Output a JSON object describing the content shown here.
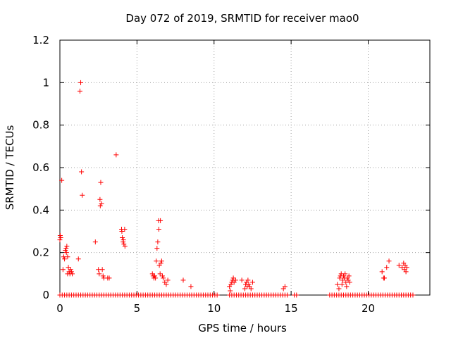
{
  "chart_data": {
    "type": "scatter",
    "title": "Day 072 of 2019, SRMTID for receiver mao0",
    "xlabel": "GPS time / hours",
    "ylabel": "SRMTID / TECUs",
    "xlim": [
      0,
      24
    ],
    "ylim": [
      0,
      1.2
    ],
    "xticks": [
      0,
      5,
      10,
      15,
      20
    ],
    "xtick_labels": [
      "0",
      "5",
      "10",
      "15",
      "20"
    ],
    "yticks": [
      0,
      0.2,
      0.4,
      0.6,
      0.8,
      1,
      1.2
    ],
    "ytick_labels": [
      "0",
      "0.2",
      "0.4",
      "0.6",
      "0.8",
      "1",
      "1.2"
    ],
    "grid": true,
    "marker": "+",
    "color": "#ff0000",
    "series": [
      {
        "name": "SRMTID",
        "points": [
          [
            0.0,
            0.26
          ],
          [
            0.02,
            0.28
          ],
          [
            0.05,
            0.27
          ],
          [
            0.12,
            0.54
          ],
          [
            0.2,
            0.12
          ],
          [
            0.25,
            0.18
          ],
          [
            0.3,
            0.17
          ],
          [
            0.35,
            0.21
          ],
          [
            0.4,
            0.22
          ],
          [
            0.42,
            0.2
          ],
          [
            0.45,
            0.23
          ],
          [
            0.5,
            0.18
          ],
          [
            0.5,
            0.1
          ],
          [
            0.55,
            0.13
          ],
          [
            0.6,
            0.11
          ],
          [
            0.65,
            0.1
          ],
          [
            0.7,
            0.12
          ],
          [
            0.75,
            0.11
          ],
          [
            0.8,
            0.1
          ],
          [
            1.2,
            0.17
          ],
          [
            1.3,
            0.96
          ],
          [
            1.35,
            1.0
          ],
          [
            1.4,
            0.58
          ],
          [
            1.45,
            0.47
          ],
          [
            2.3,
            0.25
          ],
          [
            2.5,
            0.12
          ],
          [
            2.55,
            0.1
          ],
          [
            2.6,
            0.45
          ],
          [
            2.62,
            0.42
          ],
          [
            2.65,
            0.53
          ],
          [
            2.7,
            0.43
          ],
          [
            2.75,
            0.12
          ],
          [
            2.8,
            0.09
          ],
          [
            2.85,
            0.08
          ],
          [
            3.1,
            0.08
          ],
          [
            3.2,
            0.08
          ],
          [
            3.65,
            0.66
          ],
          [
            4.0,
            0.31
          ],
          [
            4.02,
            0.3
          ],
          [
            4.05,
            0.27
          ],
          [
            4.1,
            0.25
          ],
          [
            4.12,
            0.26
          ],
          [
            4.15,
            0.24
          ],
          [
            4.2,
            0.31
          ],
          [
            4.22,
            0.23
          ],
          [
            6.0,
            0.1
          ],
          [
            6.05,
            0.09
          ],
          [
            6.1,
            0.08
          ],
          [
            6.15,
            0.09
          ],
          [
            6.2,
            0.08
          ],
          [
            6.25,
            0.16
          ],
          [
            6.3,
            0.22
          ],
          [
            6.35,
            0.25
          ],
          [
            6.4,
            0.35
          ],
          [
            6.42,
            0.31
          ],
          [
            6.45,
            0.14
          ],
          [
            6.5,
            0.1
          ],
          [
            6.52,
            0.35
          ],
          [
            6.55,
            0.15
          ],
          [
            6.6,
            0.16
          ],
          [
            6.65,
            0.09
          ],
          [
            6.7,
            0.08
          ],
          [
            6.8,
            0.06
          ],
          [
            6.9,
            0.05
          ],
          [
            7.0,
            0.07
          ],
          [
            8.0,
            0.07
          ],
          [
            8.5,
            0.04
          ],
          [
            11.0,
            0.04
          ],
          [
            11.05,
            0.02
          ],
          [
            11.1,
            0.05
          ],
          [
            11.15,
            0.06
          ],
          [
            11.2,
            0.07
          ],
          [
            11.25,
            0.08
          ],
          [
            11.3,
            0.06
          ],
          [
            11.4,
            0.07
          ],
          [
            11.8,
            0.07
          ],
          [
            12.0,
            0.03
          ],
          [
            12.05,
            0.05
          ],
          [
            12.1,
            0.06
          ],
          [
            12.15,
            0.04
          ],
          [
            12.2,
            0.07
          ],
          [
            12.25,
            0.05
          ],
          [
            12.3,
            0.04
          ],
          [
            12.4,
            0.03
          ],
          [
            12.5,
            0.06
          ],
          [
            14.5,
            0.03
          ],
          [
            14.6,
            0.04
          ],
          [
            18.0,
            0.05
          ],
          [
            18.1,
            0.03
          ],
          [
            18.15,
            0.08
          ],
          [
            18.2,
            0.09
          ],
          [
            18.25,
            0.1
          ],
          [
            18.3,
            0.05
          ],
          [
            18.35,
            0.07
          ],
          [
            18.4,
            0.09
          ],
          [
            18.45,
            0.08
          ],
          [
            18.5,
            0.1
          ],
          [
            18.55,
            0.06
          ],
          [
            18.6,
            0.04
          ],
          [
            18.65,
            0.08
          ],
          [
            18.7,
            0.07
          ],
          [
            18.75,
            0.09
          ],
          [
            18.8,
            0.06
          ],
          [
            20.9,
            0.11
          ],
          [
            21.0,
            0.08
          ],
          [
            21.05,
            0.08
          ],
          [
            21.2,
            0.13
          ],
          [
            21.35,
            0.16
          ],
          [
            22.0,
            0.14
          ],
          [
            22.2,
            0.13
          ],
          [
            22.3,
            0.15
          ],
          [
            22.35,
            0.12
          ],
          [
            22.4,
            0.14
          ],
          [
            22.45,
            0.11
          ],
          [
            22.5,
            0.13
          ]
        ],
        "zero_runs": [
          [
            0.0,
            10.2
          ],
          [
            11.0,
            14.8
          ],
          [
            15.2,
            15.4
          ],
          [
            17.5,
            23.0
          ]
        ]
      }
    ]
  }
}
